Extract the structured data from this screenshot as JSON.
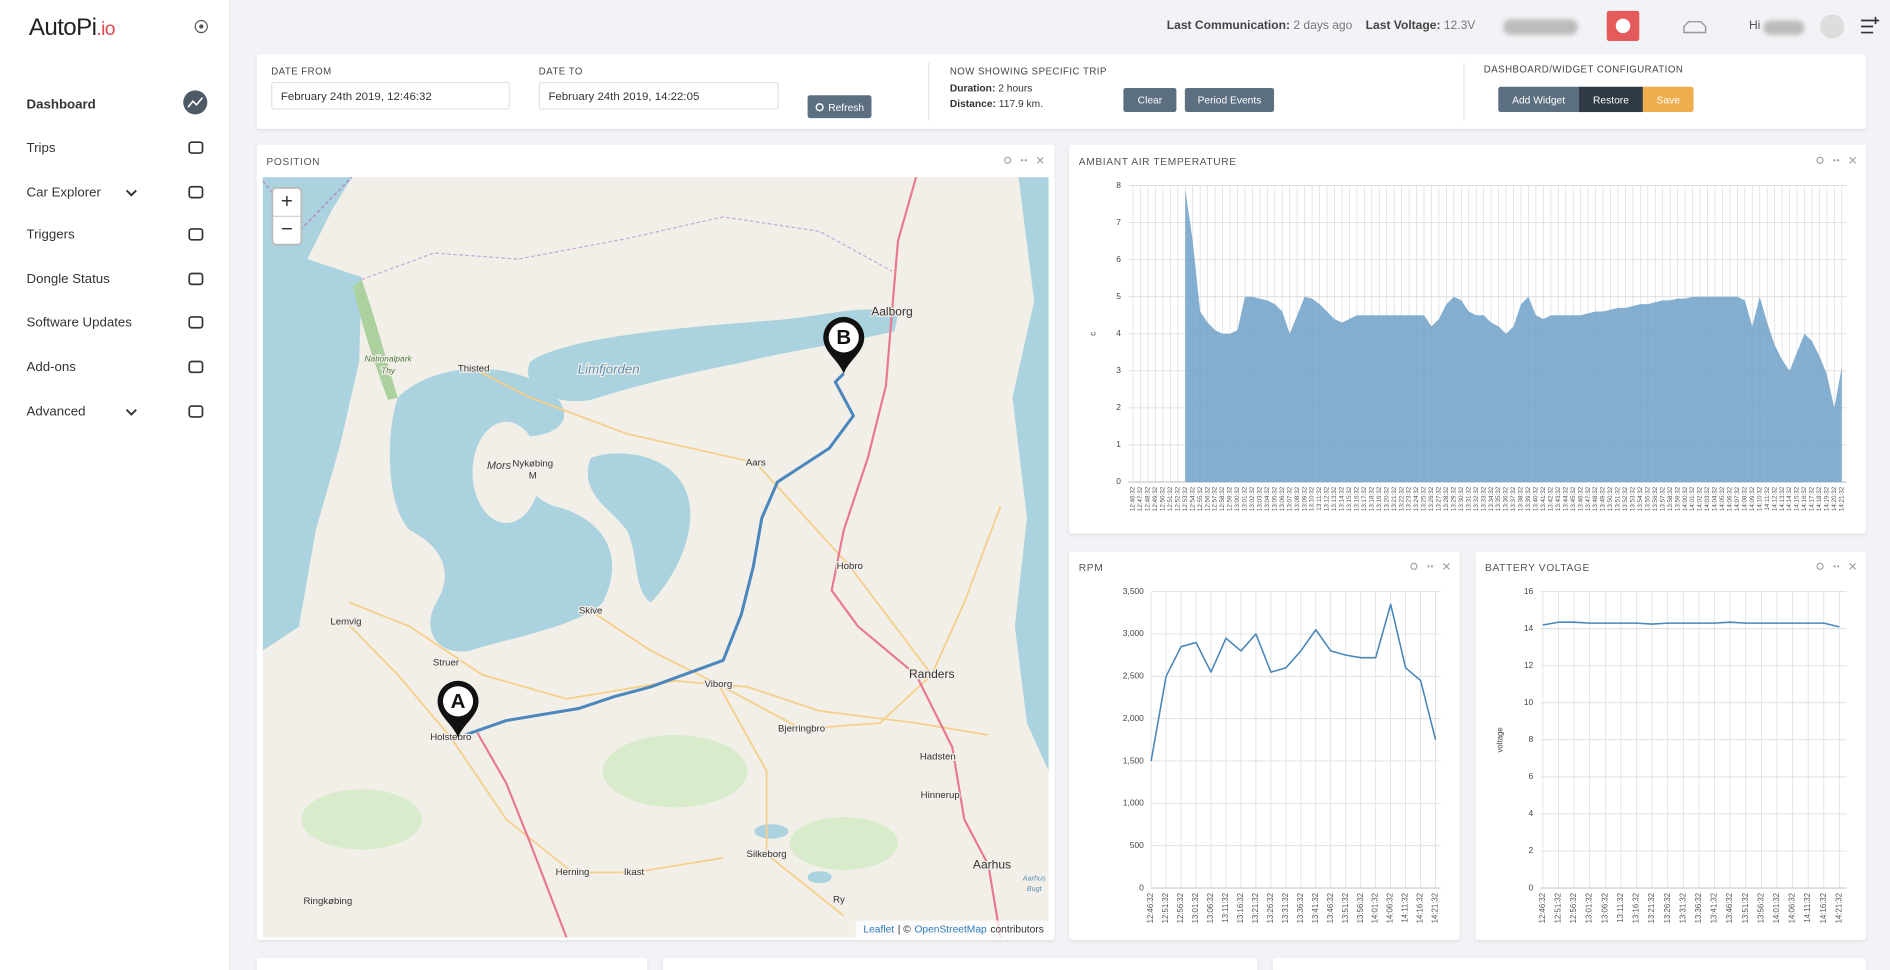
{
  "sidebar": {
    "logo": "AutoPi",
    "logo_suffix": ".io",
    "menu": [
      "Dashboard",
      "Trips",
      "Car Explorer",
      "Triggers",
      "Dongle Status",
      "Software Updates",
      "Add-ons",
      "Advanced"
    ]
  },
  "topbar": {
    "last_communication_label": "Last Communication:",
    "last_communication": "2 days ago",
    "last_voltage_label": "Last Voltage:",
    "last_voltage": "12.3V",
    "greeting": "Hi"
  },
  "filters": {
    "date_from_label": "DATE FROM",
    "date_from": "February 24th 2019, 12:46:32",
    "date_to_label": "DATE TO",
    "date_to": "February 24th 2019, 14:22:05",
    "refresh": "Refresh",
    "trip_title": "NOW SHOWING SPECIFIC TRIP",
    "duration_label": "Duration:",
    "duration": "2 hours",
    "distance_label": "Distance:",
    "distance": "117.9 km.",
    "clear": "Clear",
    "period_events": "Period Events",
    "config_title": "DASHBOARD/WIDGET CONFIGURATION",
    "add_widget": "Add Widget",
    "restore": "Restore",
    "save": "Save"
  },
  "map": {
    "title": "POSITION",
    "zoom_in": "+",
    "zoom_out": "−",
    "start": "A",
    "end": "B",
    "places": [
      "Aalborg",
      "Thisted",
      "Limfjorden",
      "Nationalpark",
      "Thy",
      "Mors",
      "Nykøbing",
      "M",
      "Aars",
      "Hobro",
      "Skive",
      "Lemvig",
      "Struer",
      "Viborg",
      "Randers",
      "Holstebro",
      "Bjerringbro",
      "Hadsten",
      "Hinnerup",
      "Silkeborg",
      "Herning",
      "Ikast",
      "Aarhus",
      "Aarhus",
      "Bugt",
      "Ringkøbing",
      "Ry"
    ],
    "attribution_link": "Leaflet",
    "attribution_sep": "| ©",
    "attribution_osm": "OpenStreetMap",
    "attribution_end": "contributors"
  },
  "chart_data": [
    {
      "type": "area",
      "title": "AMBIANT AIR TEMPERATURE",
      "y_label": "c",
      "color": "#6fa1c9",
      "grid": true,
      "ylim": [
        0,
        8
      ],
      "yticks": [
        0,
        1,
        2,
        3,
        4,
        5,
        6,
        7,
        8
      ],
      "categories": [
        "12:46:32",
        "12:47:32",
        "12:48:32",
        "12:49:32",
        "12:50:32",
        "12:51:32",
        "12:52:32",
        "12:53:32",
        "12:54:32",
        "12:55:32",
        "12:56:32",
        "12:57:32",
        "12:58:32",
        "12:59:32",
        "13:00:32",
        "13:01:32",
        "13:02:32",
        "13:03:32",
        "13:04:32",
        "13:05:32",
        "13:06:32",
        "13:07:32",
        "13:08:32",
        "13:09:32",
        "13:10:32",
        "13:11:32",
        "13:12:32",
        "13:13:32",
        "13:14:32",
        "13:15:32",
        "13:16:32",
        "13:17:32",
        "13:18:32",
        "13:19:32",
        "13:20:32",
        "13:21:32",
        "13:22:32",
        "13:23:32",
        "13:24:32",
        "13:25:32",
        "13:26:32",
        "13:27:32",
        "13:28:32",
        "13:29:32",
        "13:30:32",
        "13:31:32",
        "13:32:32",
        "13:33:32",
        "13:34:32",
        "13:35:32",
        "13:36:32",
        "13:37:32",
        "13:38:32",
        "13:39:32",
        "13:40:32",
        "13:41:32",
        "13:42:32",
        "13:43:32",
        "13:44:32",
        "13:45:32",
        "13:46:32",
        "13:47:32",
        "13:48:32",
        "13:49:32",
        "13:50:32",
        "13:51:32",
        "13:52:32",
        "13:53:32",
        "13:54:32",
        "13:55:32",
        "13:56:32",
        "13:57:32",
        "13:58:32",
        "13:59:32",
        "14:00:32",
        "14:01:32",
        "14:02:32",
        "14:03:32",
        "14:04:32",
        "14:05:32",
        "14:06:32",
        "14:07:32",
        "14:08:32",
        "14:09:32",
        "14:10:32",
        "14:11:32",
        "14:12:32",
        "14:13:32",
        "14:14:32",
        "14:15:32",
        "14:16:32",
        "14:17:32",
        "14:18:32",
        "14:19:32",
        "14:20:32",
        "14:21:32"
      ],
      "values": [
        null,
        null,
        null,
        null,
        null,
        null,
        null,
        7.9,
        6.5,
        4.6,
        4.3,
        4.1,
        4.0,
        4.0,
        4.1,
        5.0,
        5.0,
        4.95,
        4.9,
        4.8,
        4.6,
        4.0,
        4.5,
        5.0,
        4.95,
        4.8,
        4.6,
        4.4,
        4.3,
        4.4,
        4.5,
        4.5,
        4.5,
        4.5,
        4.5,
        4.5,
        4.5,
        4.5,
        4.5,
        4.5,
        4.2,
        4.4,
        4.8,
        5.0,
        4.9,
        4.6,
        4.5,
        4.5,
        4.3,
        4.2,
        4.0,
        4.2,
        4.8,
        5.0,
        4.5,
        4.4,
        4.5,
        4.5,
        4.5,
        4.5,
        4.5,
        4.55,
        4.6,
        4.6,
        4.65,
        4.7,
        4.7,
        4.75,
        4.8,
        4.8,
        4.85,
        4.9,
        4.9,
        4.95,
        4.95,
        5.0,
        5.0,
        5.0,
        5.0,
        5.0,
        5.0,
        5.0,
        4.9,
        4.2,
        5.0,
        4.3,
        3.7,
        3.3,
        3.0,
        3.5,
        4.0,
        3.8,
        3.4,
        2.9,
        2.0,
        3.1
      ]
    },
    {
      "type": "line",
      "title": "RPM",
      "color": "#4a86b8",
      "grid": true,
      "ylim": [
        0,
        3500
      ],
      "yticks": [
        0,
        500,
        {
          "value": 1000,
          "label": "1,000"
        },
        {
          "value": 1500,
          "label": "1,500"
        },
        {
          "value": 2000,
          "label": "2,000"
        },
        {
          "value": 2500,
          "label": "2,500"
        },
        {
          "value": 3000,
          "label": "3,000"
        },
        {
          "value": 3500,
          "label": "3,500"
        }
      ],
      "categories": [
        "12:46:32",
        "12:51:32",
        "12:56:32",
        "13:01:32",
        "13:06:32",
        "13:11:32",
        "13:16:32",
        "13:21:32",
        "13:26:32",
        "13:31:32",
        "13:36:32",
        "13:41:32",
        "13:46:32",
        "13:51:32",
        "13:56:32",
        "14:01:32",
        "14:06:32",
        "14:11:32",
        "14:16:32",
        "14:21:32"
      ],
      "values": [
        1500,
        2500,
        2850,
        2900,
        2550,
        2950,
        2800,
        3000,
        2550,
        2600,
        2800,
        3050,
        2800,
        2750,
        2720,
        2720,
        3350,
        2600,
        2450,
        1750
      ]
    },
    {
      "type": "line",
      "title": "BATTERY VOLTAGE",
      "y_label": "voltage",
      "color": "#4a86b8",
      "grid": true,
      "ylim": [
        0,
        16
      ],
      "yticks": [
        0,
        2,
        4,
        6,
        8,
        10,
        12,
        14,
        16
      ],
      "categories": [
        "12:46:32",
        "12:51:32",
        "12:56:32",
        "13:01:32",
        "13:06:32",
        "13:11:32",
        "13:16:32",
        "13:21:32",
        "13:26:32",
        "13:31:32",
        "13:36:32",
        "13:41:32",
        "13:46:32",
        "13:51:32",
        "13:56:32",
        "14:01:32",
        "14:06:32",
        "14:11:32",
        "14:16:32",
        "14:21:32"
      ],
      "values": [
        14.2,
        14.35,
        14.35,
        14.3,
        14.3,
        14.3,
        14.3,
        14.25,
        14.3,
        14.3,
        14.3,
        14.3,
        14.35,
        14.3,
        14.3,
        14.3,
        14.3,
        14.3,
        14.3,
        14.1
      ]
    }
  ]
}
